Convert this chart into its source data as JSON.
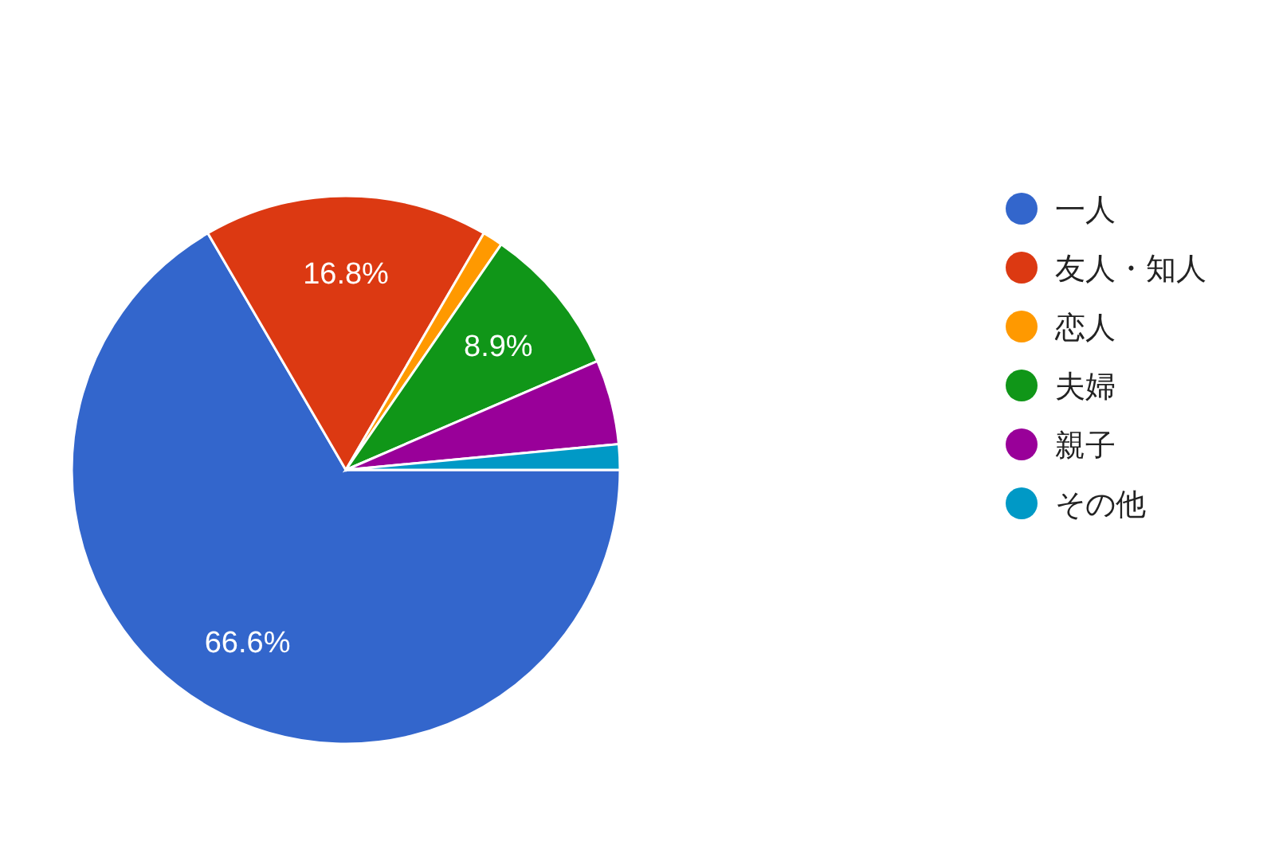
{
  "chart_data": {
    "type": "pie",
    "categories": [
      "一人",
      "友人・知人",
      "恋人",
      "夫婦",
      "親子",
      "その他"
    ],
    "values": [
      66.6,
      16.8,
      1.2,
      8.9,
      5.0,
      1.5
    ],
    "colors": [
      "#3366cc",
      "#dc3912",
      "#ff9900",
      "#109618",
      "#990099",
      "#0099c6"
    ],
    "value_labels": [
      "66.6%",
      "16.8%",
      null,
      "8.9%",
      null,
      null
    ],
    "legend": "right"
  }
}
